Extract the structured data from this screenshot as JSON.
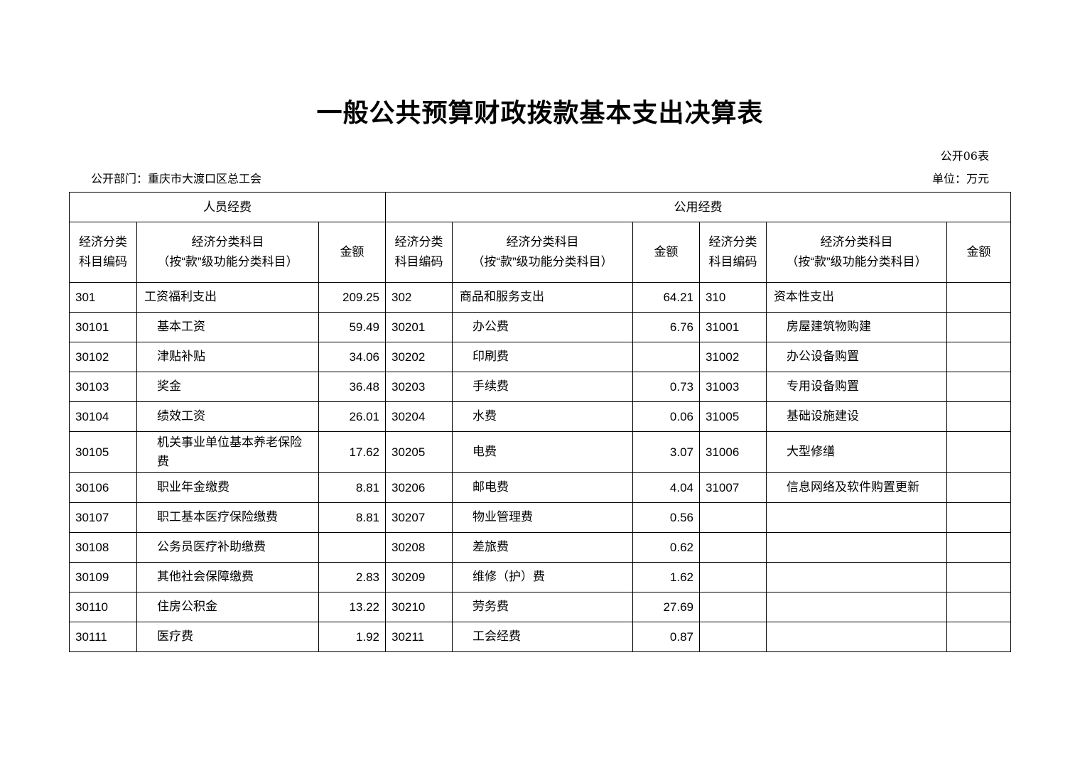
{
  "title": "一般公共预算财政拨款基本支出决算表",
  "table_no": "公开06表",
  "department": "公开部门：重庆市大渡口区总工会",
  "unit": "单位：万元",
  "groups": {
    "personnel": "人员经费",
    "public": "公用经费"
  },
  "headers": {
    "code": "经济分类\n科目编码",
    "name": "经济分类科目\n（按“款”级功能分类科目）",
    "amount": "金额"
  },
  "rows": [
    [
      "301",
      "工资福利支出",
      "209.25",
      "302",
      "商品和服务支出",
      "64.21",
      "310",
      "资本性支出",
      ""
    ],
    [
      "30101",
      "基本工资",
      "59.49",
      "30201",
      "办公费",
      "6.76",
      "31001",
      "房屋建筑物购建",
      ""
    ],
    [
      "30102",
      "津贴补贴",
      "34.06",
      "30202",
      "印刷费",
      "",
      "31002",
      "办公设备购置",
      ""
    ],
    [
      "30103",
      "奖金",
      "36.48",
      "30203",
      "手续费",
      "0.73",
      "31003",
      "专用设备购置",
      ""
    ],
    [
      "30104",
      "绩效工资",
      "26.01",
      "30204",
      "水费",
      "0.06",
      "31005",
      "基础设施建设",
      ""
    ],
    [
      "30105",
      "机关事业单位基本养老保险费",
      "17.62",
      "30205",
      "电费",
      "3.07",
      "31006",
      "大型修缮",
      ""
    ],
    [
      "30106",
      "职业年金缴费",
      "8.81",
      "30206",
      "邮电费",
      "4.04",
      "31007",
      "信息网络及软件购置更新",
      ""
    ],
    [
      "30107",
      "职工基本医疗保险缴费",
      "8.81",
      "30207",
      "物业管理费",
      "0.56",
      "",
      "",
      ""
    ],
    [
      "30108",
      "公务员医疗补助缴费",
      "",
      "30208",
      "差旅费",
      "0.62",
      "",
      "",
      ""
    ],
    [
      "30109",
      "其他社会保障缴费",
      "2.83",
      "30209",
      "维修（护）费",
      "1.62",
      "",
      "",
      ""
    ],
    [
      "30110",
      "住房公积金",
      "13.22",
      "30210",
      "劳务费",
      "27.69",
      "",
      "",
      ""
    ],
    [
      "30111",
      "医疗费",
      "1.92",
      "30211",
      "工会经费",
      "0.87",
      "",
      "",
      ""
    ]
  ]
}
